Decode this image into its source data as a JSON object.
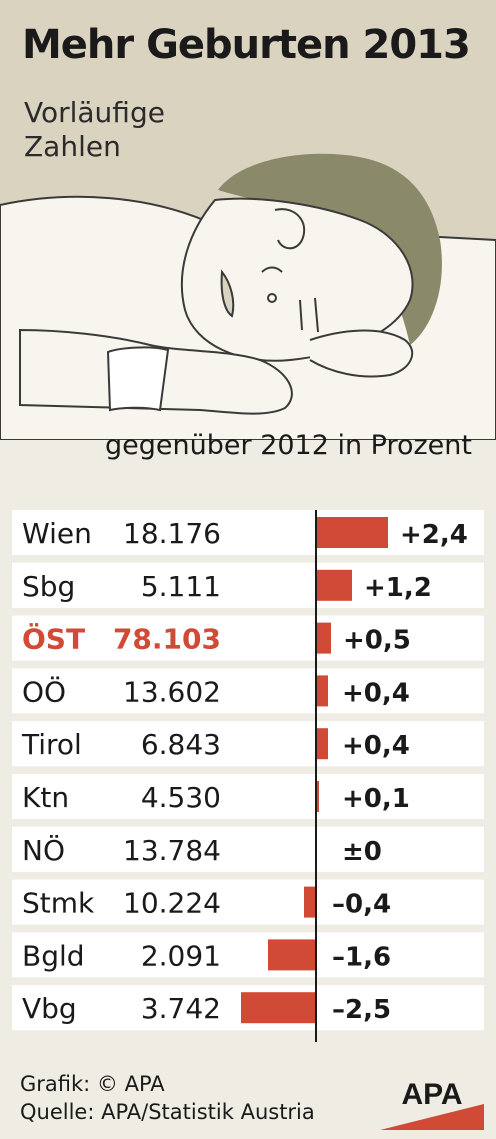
{
  "header": {
    "title": "Mehr Geburten 2013",
    "subtitle": "Vorläufige Zahlen"
  },
  "chart_data": {
    "type": "bar",
    "title": "Mehr Geburten 2013",
    "subtitle": "Vorläufige Zahlen",
    "unit_label": "gegenüber 2012 in Prozent",
    "categories": [
      "Wien",
      "Sbg",
      "ÖST",
      "OÖ",
      "Tirol",
      "Ktn",
      "NÖ",
      "Stmk",
      "Bgld",
      "Vbg"
    ],
    "births": [
      "18.176",
      "5.111",
      "78.103",
      "13.602",
      "6.843",
      "4.530",
      "13.784",
      "10.224",
      "2.091",
      "3.742"
    ],
    "values": [
      2.4,
      1.2,
      0.5,
      0.4,
      0.4,
      0.1,
      0,
      -0.4,
      -1.6,
      -2.5
    ],
    "value_labels": [
      "+2,4",
      "+1,2",
      "+0,5",
      "+0,4",
      "+0,4",
      "+0,1",
      "±0",
      "–0,4",
      "–1,6",
      "–2,5"
    ],
    "highlight_category": "ÖST",
    "colors": {
      "bar": "#d04a35",
      "highlight_text": "#d04a35",
      "row_bg": "#ffffff",
      "page_bg": "#efece3",
      "header_bg": "#d9d3c0"
    }
  },
  "footer": {
    "credit": "Grafik: © APA",
    "source": "Quelle: APA/Statistik Austria",
    "logo_text": "APA"
  }
}
